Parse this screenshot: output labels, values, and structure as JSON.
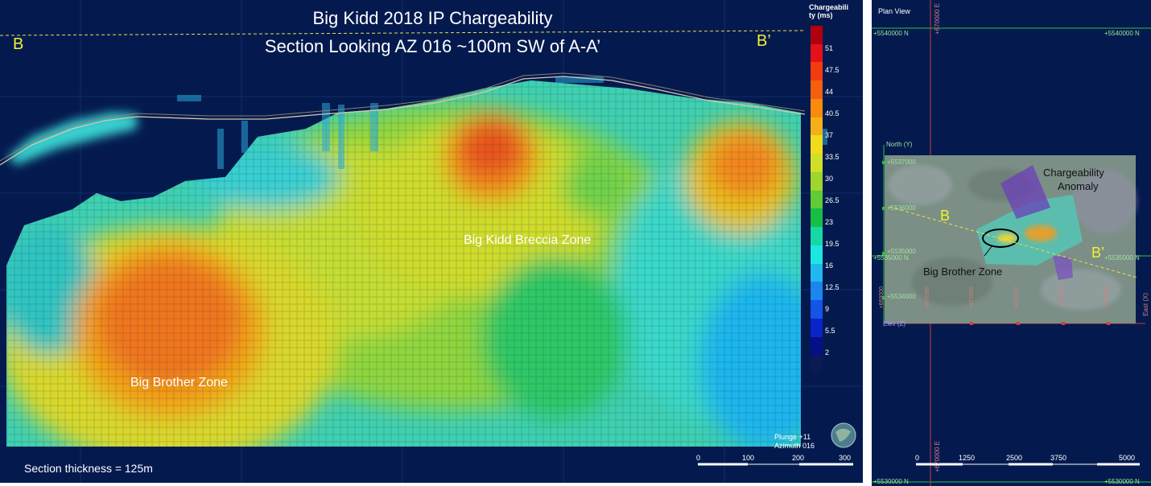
{
  "section": {
    "title_line1": "Big Kidd 2018 IP Chargeability",
    "title_line2": "Section Looking  AZ 016 ~100m SW of A-A’",
    "label_left": "B",
    "label_right": "B’",
    "zone_breccia": "Big Kidd Breccia Zone",
    "zone_brother": "Big Brother Zone",
    "section_thickness": "Section thickness = 125m",
    "plunge": "Plunge +11",
    "azimuth": "Azimuth 016",
    "scale_ticks": [
      "0",
      "100",
      "200",
      "300"
    ]
  },
  "legend": {
    "title_line1": "Chargeabili",
    "title_line2": "ty (ms)",
    "ticks": [
      "51",
      "47.5",
      "44",
      "40.5",
      "37",
      "33.5",
      "30",
      "26.5",
      "23",
      "19.5",
      "16",
      "12.5",
      "9",
      "5.5",
      "2"
    ],
    "colors": [
      "#b0000f",
      "#e3121a",
      "#f23b10",
      "#f55f10",
      "#f88a0e",
      "#f3b117",
      "#f0dc1a",
      "#cfdf2a",
      "#9fd52d",
      "#5fcb35",
      "#18bd45",
      "#17d8a4",
      "#1ee6e0",
      "#20b8ef",
      "#1a86ee",
      "#1454e6",
      "#0a24c8",
      "#050f86",
      "#0b1a55"
    ]
  },
  "plan": {
    "title": "Plan View",
    "north_axis": "North (Y)",
    "east_axis": "East (X)",
    "elev_axis": "Elev (Z)",
    "grid_top_left": "+5540000 N",
    "grid_top_right": "+5540000 N",
    "grid_mid_left": "+5535000 N",
    "grid_mid_right": "+5535000 N",
    "grid_bottom_left": "+5530000 N",
    "grid_bottom_right": "+5530000 N",
    "grid_vertical_top": "+670000 E",
    "grid_vertical_bottom": "+670000 E",
    "north_ticks": [
      "+5537000",
      "+5536000",
      "+5535000",
      "+5534000"
    ],
    "east_ticks": [
      "+669000",
      "+670000",
      "+671000",
      "+672000",
      "+673000",
      "+674000"
    ],
    "label_b": "B",
    "label_b_prime": "B’",
    "anomaly_line1": "Chargeability",
    "anomaly_line2": "Anomaly",
    "brother_zone": "Big Brother Zone",
    "scale_ticks": [
      "0",
      "1250",
      "2500",
      "3750",
      "5000"
    ]
  }
}
